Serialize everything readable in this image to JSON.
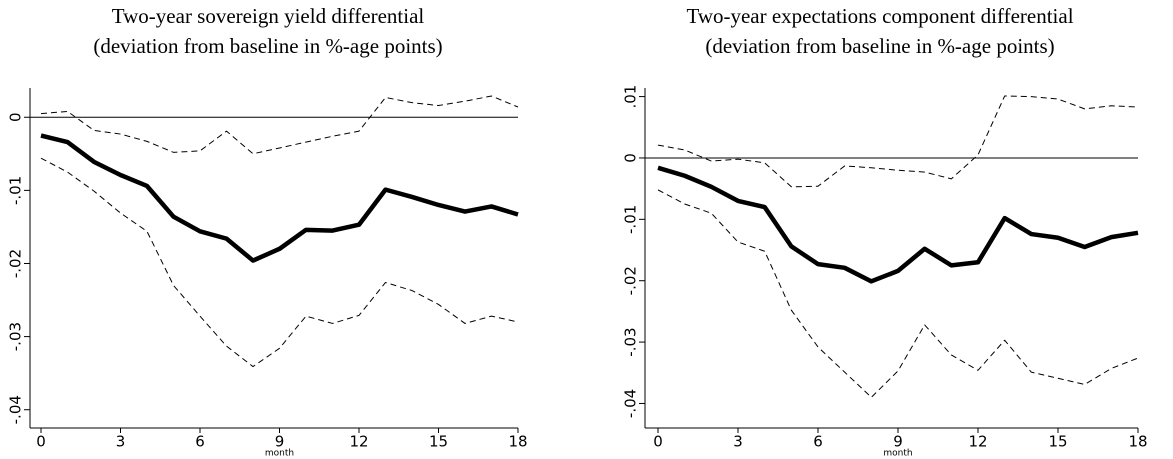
{
  "chart_data": [
    {
      "type": "line",
      "title": "Two-year sovereign yield differential",
      "subtitle": "(deviation from baseline in %-age points)",
      "x_label": "month",
      "x": [
        0,
        1,
        2,
        3,
        4,
        5,
        6,
        7,
        8,
        9,
        10,
        11,
        12,
        13,
        14,
        15,
        16,
        17,
        18
      ],
      "xlim": [
        0,
        18
      ],
      "xticks": [
        0,
        3,
        6,
        9,
        12,
        15,
        18
      ],
      "ylim": [
        -0.0425,
        0.004
      ],
      "yticks": [
        0,
        {
          "value": -0.01,
          "label": "-.01"
        },
        {
          "value": -0.02,
          "label": "-.02"
        },
        {
          "value": -0.03,
          "label": "-.03"
        },
        {
          "value": -0.04,
          "label": "-.04"
        }
      ],
      "reference_line": 0,
      "series": [
        {
          "color": "#000000",
          "style": "thick",
          "values": [
            -0.0025,
            -0.0034,
            -0.0061,
            -0.0079,
            -0.0094,
            -0.0136,
            -0.0156,
            -0.0166,
            -0.0196,
            -0.018,
            -0.0154,
            -0.0155,
            -0.0147,
            -0.0099,
            -0.0109,
            -0.012,
            -0.0129,
            -0.0122,
            -0.0133
          ]
        },
        {
          "color": "#000000",
          "style": "dashed",
          "values": [
            0.0005,
            0.0008,
            -0.0018,
            -0.0023,
            -0.0033,
            -0.0048,
            -0.0046,
            -0.0019,
            -0.005,
            -0.0042,
            -0.0034,
            -0.0026,
            -0.0019,
            0.0027,
            0.002,
            0.0016,
            0.0022,
            0.0029,
            0.0014
          ]
        },
        {
          "color": "#000000",
          "style": "dashed",
          "values": [
            -0.0056,
            -0.0075,
            -0.0101,
            -0.0131,
            -0.0156,
            -0.023,
            -0.0272,
            -0.0313,
            -0.0341,
            -0.0316,
            -0.0272,
            -0.0282,
            -0.0271,
            -0.0226,
            -0.0237,
            -0.0256,
            -0.0282,
            -0.0272,
            -0.028
          ]
        }
      ]
    },
    {
      "type": "line",
      "title": "Two-year expectations component differential",
      "subtitle": "(deviation from baseline in %-age points)",
      "x_label": "month",
      "x": [
        0,
        1,
        2,
        3,
        4,
        5,
        6,
        7,
        8,
        9,
        10,
        11,
        12,
        13,
        14,
        15,
        16,
        17,
        18
      ],
      "xlim": [
        0,
        18
      ],
      "xticks": [
        0,
        3,
        6,
        9,
        12,
        15,
        18
      ],
      "ylim": [
        -0.044,
        0.0114
      ],
      "yticks": [
        {
          "value": 0.01,
          "label": ".01"
        },
        0,
        {
          "value": -0.01,
          "label": "-.01"
        },
        {
          "value": -0.02,
          "label": "-.02"
        },
        {
          "value": -0.03,
          "label": "-.03"
        },
        {
          "value": -0.04,
          "label": "-.04"
        }
      ],
      "reference_line": 0,
      "series": [
        {
          "color": "#000000",
          "style": "thick",
          "values": [
            -0.0016,
            -0.0029,
            -0.0047,
            -0.007,
            -0.008,
            -0.0144,
            -0.0173,
            -0.0179,
            -0.0201,
            -0.0184,
            -0.0148,
            -0.0175,
            -0.017,
            -0.0098,
            -0.0124,
            -0.013,
            -0.0145,
            -0.0129,
            -0.0122
          ]
        },
        {
          "color": "#000000",
          "style": "dashed",
          "values": [
            0.0021,
            0.0013,
            -0.0005,
            -0.0002,
            -0.0008,
            -0.0047,
            -0.0046,
            -0.0013,
            -0.0016,
            -0.002,
            -0.0023,
            -0.0034,
            0.0005,
            0.0101,
            0.01,
            0.0096,
            0.008,
            0.0085,
            0.0083
          ]
        },
        {
          "color": "#000000",
          "style": "dashed",
          "values": [
            -0.0052,
            -0.0075,
            -0.009,
            -0.0137,
            -0.0152,
            -0.0248,
            -0.0308,
            -0.0349,
            -0.039,
            -0.0347,
            -0.0272,
            -0.0321,
            -0.0346,
            -0.0297,
            -0.0349,
            -0.0359,
            -0.0369,
            -0.0343,
            -0.0326
          ]
        }
      ]
    }
  ]
}
